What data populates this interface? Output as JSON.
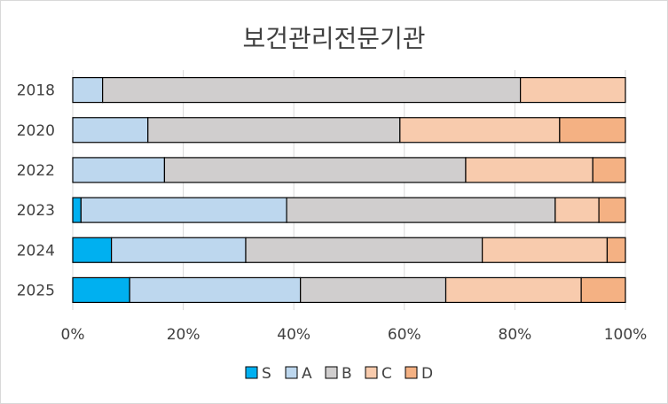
{
  "chart_data": {
    "type": "bar",
    "orientation": "horizontal",
    "stacked": "percent",
    "title": "보건관리전문기관",
    "categories": [
      "2018",
      "2020",
      "2022",
      "2023",
      "2024",
      "2025"
    ],
    "series": [
      {
        "name": "S",
        "color": "#00b0f0",
        "values": [
          0,
          0,
          0,
          1.5,
          7,
          10.3
        ]
      },
      {
        "name": "A",
        "color": "#bdd7ee",
        "values": [
          5.4,
          13.6,
          16.6,
          37.2,
          24.3,
          30.9
        ]
      },
      {
        "name": "B",
        "color": "#d0cece",
        "values": [
          75.6,
          45.6,
          54.5,
          48.6,
          42.8,
          26.3
        ]
      },
      {
        "name": "C",
        "color": "#f8cbad",
        "values": [
          19.0,
          28.9,
          23.0,
          7.9,
          22.6,
          24.5
        ]
      },
      {
        "name": "D",
        "color": "#f4b183",
        "values": [
          0,
          11.9,
          5.9,
          4.8,
          3.3,
          8.0
        ]
      }
    ],
    "xlim": [
      0,
      100
    ],
    "xticks": [
      "0%",
      "20%",
      "40%",
      "60%",
      "80%",
      "100%"
    ],
    "grid": true,
    "legend_position": "bottom"
  }
}
